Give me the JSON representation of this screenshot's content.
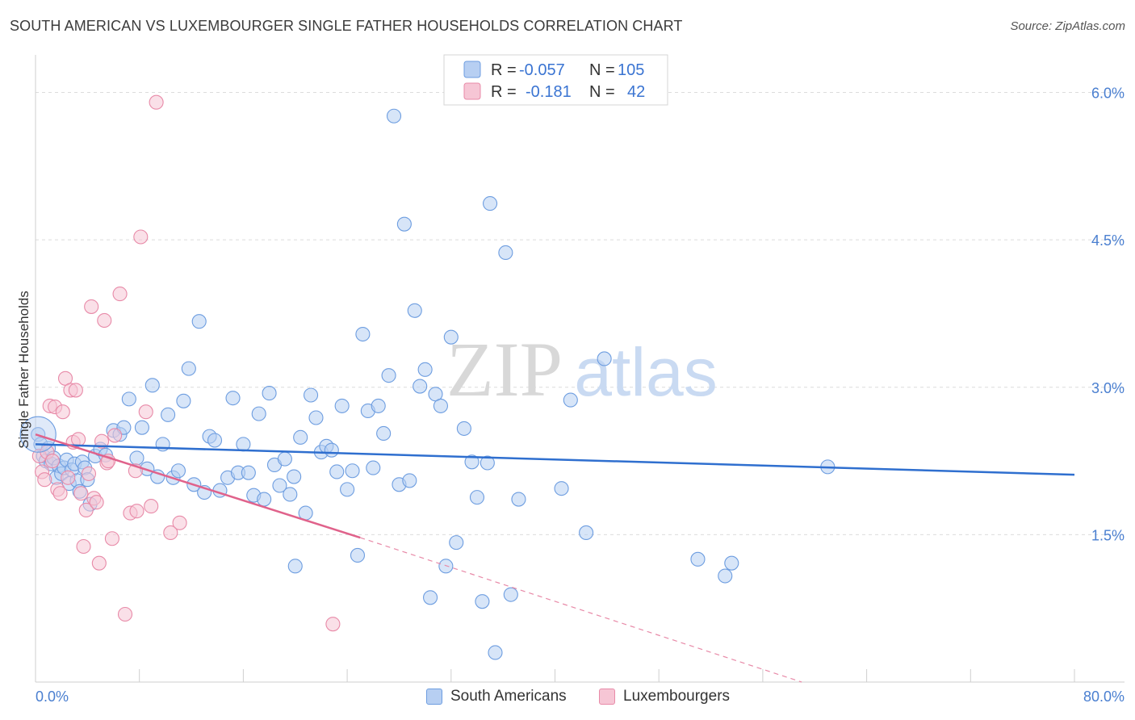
{
  "title": "SOUTH AMERICAN VS LUXEMBOURGER SINGLE FATHER HOUSEHOLDS CORRELATION CHART",
  "source": "Source: ZipAtlas.com",
  "chart_data": {
    "type": "scatter",
    "ylabel": "Single Father Households",
    "xlim": [
      0,
      80
    ],
    "ylim": [
      0,
      6.3
    ],
    "x_tick_labels": [
      "0.0%",
      "80.0%"
    ],
    "y_ticks": [
      1.5,
      3.0,
      4.5,
      6.0
    ],
    "y_tick_labels": [
      "1.5%",
      "3.0%",
      "4.5%",
      "6.0%"
    ],
    "grid": true,
    "watermark": {
      "zip": "ZIP",
      "atlas": "atlas"
    },
    "legend_stats": [
      {
        "r_label": "R =",
        "r_value": "-0.057",
        "n_label": "N =",
        "n_value": "105"
      },
      {
        "r_label": "R =",
        "r_value": "-0.181",
        "n_label": "N =",
        "n_value": "42"
      }
    ],
    "series": [
      {
        "name": "South Americans",
        "color": "#6d9de0",
        "fill": "#b7cff2",
        "trend": {
          "x0": 0,
          "y0": 2.42,
          "x1": 80,
          "y1": 2.11
        },
        "points": [
          [
            0.2,
            2.52
          ],
          [
            0.4,
            2.42
          ],
          [
            0.6,
            2.3
          ],
          [
            0.8,
            2.25
          ],
          [
            1.0,
            2.38
          ],
          [
            1.2,
            2.22
          ],
          [
            1.4,
            2.28
          ],
          [
            1.6,
            2.08
          ],
          [
            1.8,
            2.2
          ],
          [
            2.0,
            2.12
          ],
          [
            2.2,
            2.18
          ],
          [
            2.4,
            2.26
          ],
          [
            2.6,
            2.02
          ],
          [
            2.8,
            2.16
          ],
          [
            3.0,
            2.22
          ],
          [
            3.2,
            2.05
          ],
          [
            3.4,
            1.94
          ],
          [
            3.6,
            2.24
          ],
          [
            3.8,
            2.18
          ],
          [
            4.0,
            2.06
          ],
          [
            4.2,
            1.81
          ],
          [
            4.6,
            2.3
          ],
          [
            5.0,
            2.37
          ],
          [
            5.4,
            2.31
          ],
          [
            6.0,
            2.56
          ],
          [
            6.5,
            2.52
          ],
          [
            6.8,
            2.59
          ],
          [
            7.2,
            2.88
          ],
          [
            7.8,
            2.28
          ],
          [
            8.2,
            2.59
          ],
          [
            8.6,
            2.17
          ],
          [
            9.0,
            3.02
          ],
          [
            9.4,
            2.09
          ],
          [
            9.8,
            2.42
          ],
          [
            10.2,
            2.72
          ],
          [
            10.6,
            2.08
          ],
          [
            11.0,
            2.15
          ],
          [
            11.4,
            2.86
          ],
          [
            11.8,
            3.19
          ],
          [
            12.2,
            2.01
          ],
          [
            12.6,
            3.67
          ],
          [
            13.0,
            1.93
          ],
          [
            13.4,
            2.5
          ],
          [
            13.8,
            2.46
          ],
          [
            14.2,
            1.95
          ],
          [
            14.8,
            2.08
          ],
          [
            15.2,
            2.89
          ],
          [
            15.6,
            2.13
          ],
          [
            16.0,
            2.42
          ],
          [
            16.4,
            2.13
          ],
          [
            16.8,
            1.9
          ],
          [
            17.2,
            2.73
          ],
          [
            17.6,
            1.86
          ],
          [
            18.0,
            2.94
          ],
          [
            18.4,
            2.21
          ],
          [
            18.8,
            2.0
          ],
          [
            19.2,
            2.27
          ],
          [
            19.6,
            1.91
          ],
          [
            20.0,
            1.18
          ],
          [
            20.4,
            2.49
          ],
          [
            20.8,
            1.72
          ],
          [
            21.2,
            2.92
          ],
          [
            21.6,
            2.69
          ],
          [
            22.0,
            2.34
          ],
          [
            22.4,
            2.4
          ],
          [
            22.8,
            2.36
          ],
          [
            23.2,
            2.14
          ],
          [
            23.6,
            2.81
          ],
          [
            24.0,
            1.96
          ],
          [
            24.4,
            2.15
          ],
          [
            24.8,
            1.29
          ],
          [
            25.2,
            3.54
          ],
          [
            25.6,
            2.76
          ],
          [
            26.0,
            2.18
          ],
          [
            26.4,
            2.81
          ],
          [
            26.8,
            2.53
          ],
          [
            27.2,
            3.12
          ],
          [
            27.6,
            5.76
          ],
          [
            28.0,
            2.01
          ],
          [
            28.4,
            4.66
          ],
          [
            28.8,
            2.05
          ],
          [
            29.2,
            3.78
          ],
          [
            29.6,
            3.01
          ],
          [
            30.0,
            3.18
          ],
          [
            30.4,
            0.86
          ],
          [
            30.8,
            2.93
          ],
          [
            31.2,
            2.81
          ],
          [
            31.6,
            1.18
          ],
          [
            32.0,
            3.51
          ],
          [
            32.4,
            1.42
          ],
          [
            33.0,
            2.58
          ],
          [
            33.6,
            2.24
          ],
          [
            34.0,
            1.88
          ],
          [
            34.4,
            0.82
          ],
          [
            35.0,
            4.87
          ],
          [
            35.4,
            0.3
          ],
          [
            36.2,
            4.37
          ],
          [
            36.6,
            0.89
          ],
          [
            37.2,
            1.86
          ],
          [
            40.5,
            1.97
          ],
          [
            41.2,
            2.87
          ],
          [
            43.8,
            3.29
          ],
          [
            51.0,
            1.25
          ],
          [
            53.1,
            1.08
          ],
          [
            53.6,
            1.21
          ],
          [
            61.0,
            2.19
          ],
          [
            42.4,
            1.52
          ],
          [
            19.9,
            2.09
          ],
          [
            34.8,
            2.23
          ]
        ]
      },
      {
        "name": "Luxembourgers",
        "color": "#e88aa8",
        "fill": "#f6c6d5",
        "trend": {
          "x0": 0,
          "y0": 2.52,
          "x1": 25,
          "y1": 1.47
        },
        "trend_dash": {
          "x0": 25,
          "y0": 1.47,
          "x1": 59,
          "y1": 0.0
        },
        "points": [
          [
            0.3,
            2.3
          ],
          [
            0.5,
            2.14
          ],
          [
            0.7,
            2.06
          ],
          [
            0.9,
            2.34
          ],
          [
            1.1,
            2.81
          ],
          [
            1.3,
            2.25
          ],
          [
            1.5,
            2.8
          ],
          [
            1.7,
            1.96
          ],
          [
            1.9,
            1.92
          ],
          [
            2.1,
            2.75
          ],
          [
            2.3,
            3.09
          ],
          [
            2.5,
            2.08
          ],
          [
            2.7,
            2.97
          ],
          [
            2.9,
            2.44
          ],
          [
            3.1,
            2.97
          ],
          [
            3.3,
            2.47
          ],
          [
            3.5,
            1.92
          ],
          [
            3.7,
            1.38
          ],
          [
            3.9,
            1.75
          ],
          [
            4.1,
            2.12
          ],
          [
            4.3,
            3.82
          ],
          [
            4.5,
            1.87
          ],
          [
            4.7,
            1.83
          ],
          [
            4.9,
            1.21
          ],
          [
            5.1,
            2.45
          ],
          [
            5.3,
            3.68
          ],
          [
            5.5,
            2.23
          ],
          [
            5.9,
            1.46
          ],
          [
            6.1,
            2.51
          ],
          [
            6.5,
            3.95
          ],
          [
            6.9,
            0.69
          ],
          [
            7.3,
            1.72
          ],
          [
            7.7,
            2.15
          ],
          [
            8.1,
            4.53
          ],
          [
            8.5,
            2.75
          ],
          [
            8.9,
            1.79
          ],
          [
            9.3,
            5.9
          ],
          [
            10.4,
            1.52
          ],
          [
            11.1,
            1.62
          ],
          [
            22.9,
            0.59
          ],
          [
            7.8,
            1.74
          ],
          [
            5.6,
            2.25
          ]
        ]
      }
    ]
  },
  "bottom_legend": [
    "South Americans",
    "Luxembourgers"
  ]
}
